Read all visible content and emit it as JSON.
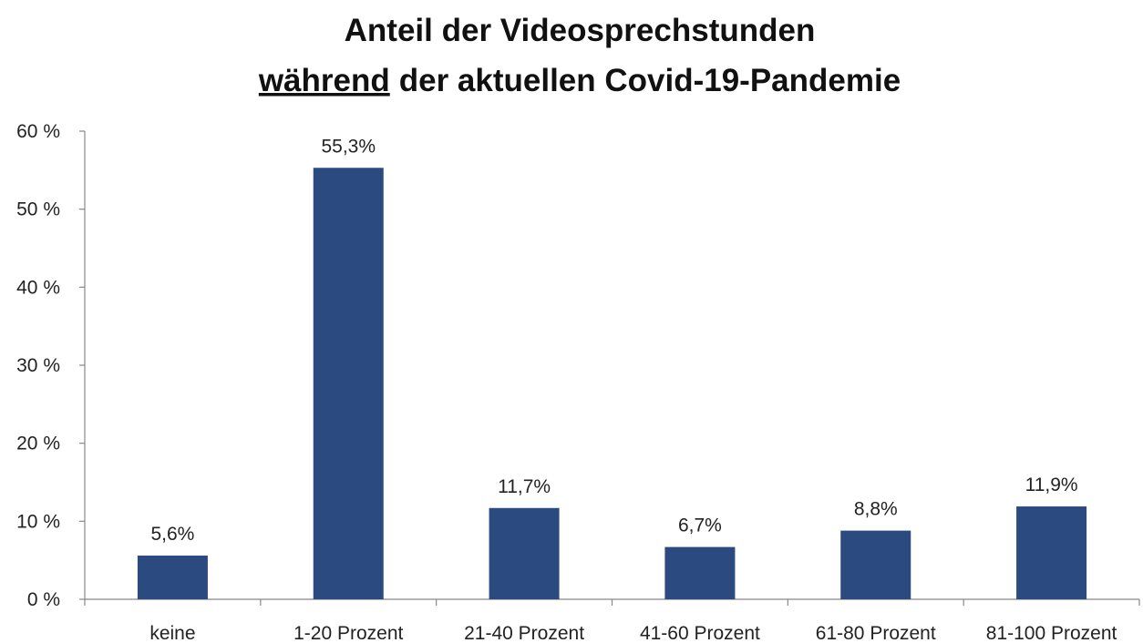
{
  "chart_data": {
    "type": "bar",
    "title": {
      "line1": "Anteil der Videosprechstunden",
      "line2_underlined": "während",
      "line2_rest": "der aktuellen Covid-19-Pandemie"
    },
    "categories": [
      "keine",
      "1-20 Prozent",
      "21-40 Prozent",
      "41-60 Prozent",
      "61-80 Prozent",
      "81-100 Prozent"
    ],
    "values": [
      5.6,
      55.3,
      11.7,
      6.7,
      8.8,
      11.9
    ],
    "value_labels": [
      "5,6%",
      "55,3%",
      "11,7%",
      "6,7%",
      "8,8%",
      "11,9%"
    ],
    "color": "#2a4a80",
    "ylim": [
      0,
      60
    ],
    "yticks": [
      {
        "value": 0,
        "label": "0 %"
      },
      {
        "value": 10,
        "label": "10 %"
      },
      {
        "value": 20,
        "label": "20 %"
      },
      {
        "value": 30,
        "label": "30 %"
      },
      {
        "value": 40,
        "label": "40 %"
      },
      {
        "value": 50,
        "label": "50 %"
      },
      {
        "value": 60,
        "label": "60 %"
      }
    ],
    "grid": false
  }
}
